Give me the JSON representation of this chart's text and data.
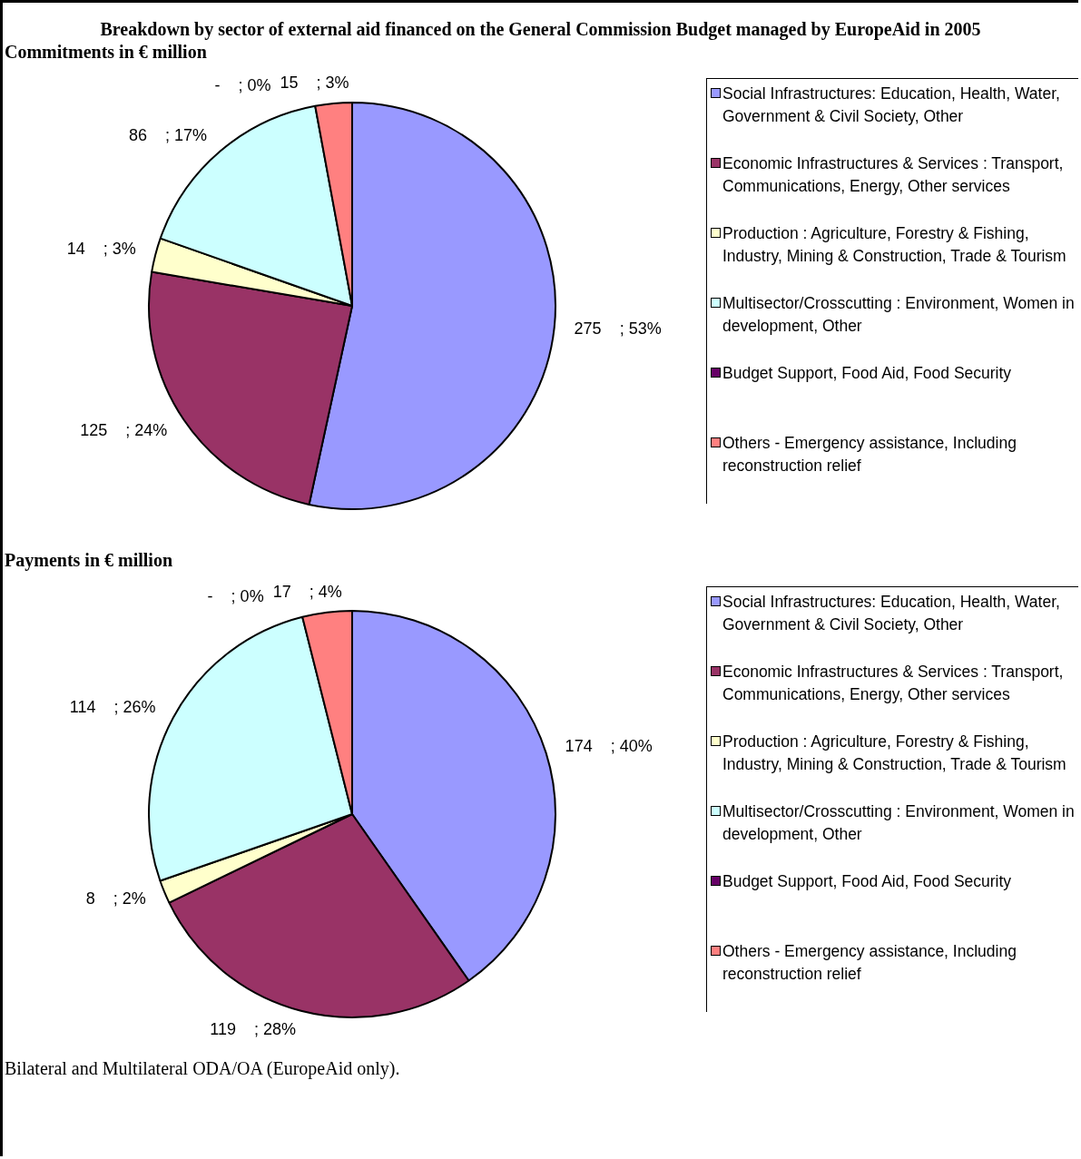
{
  "chart_data": [
    {
      "type": "pie",
      "title": "Breakdown by sector of external aid financed on the General Commission Budget managed by EuropeAid in 2005",
      "subtitle": "Commitments in € million",
      "categories": [
        "Social Infrastructures: Education, Health, Water, Government & Civil Society, Other",
        "Economic Infrastructures & Services : Transport, Communications, Energy, Other services",
        "Production : Agriculture, Forestry & Fishing, Industry, Mining & Construction, Trade & Tourism",
        "Multisector/Crosscutting : Environment, Women in development, Other",
        "Budget Support, Food Aid, Food Security",
        "Others - Emergency assistance, Including reconstruction relief"
      ],
      "values": [
        275,
        125,
        14,
        86,
        0,
        15
      ],
      "value_labels": [
        "275    ; 53%",
        "125    ; 24%",
        "14    ; 3%",
        "86    ; 17%",
        "-    ; 0%",
        "15    ; 3%"
      ],
      "colors": [
        "#9999ff",
        "#993366",
        "#ffffcc",
        "#ccffff",
        "#660066",
        "#ff8080"
      ],
      "legend": "right"
    },
    {
      "type": "pie",
      "title": "Payments in € million",
      "categories": [
        "Social Infrastructures: Education, Health, Water, Government & Civil Society, Other",
        "Economic Infrastructures & Services : Transport, Communications, Energy, Other services",
        "Production : Agriculture, Forestry & Fishing, Industry, Mining & Construction, Trade & Tourism",
        "Multisector/Crosscutting : Environment, Women in development, Other",
        "Budget Support, Food Aid, Food Security",
        "Others - Emergency assistance, Including reconstruction relief"
      ],
      "values": [
        174,
        119,
        8,
        114,
        0,
        17
      ],
      "value_labels": [
        "174    ; 40%",
        "119    ; 28%",
        "8    ; 2%",
        "114    ; 26%",
        "-    ; 0%",
        "17    ; 4%"
      ],
      "colors": [
        "#9999ff",
        "#993366",
        "#ffffcc",
        "#ccffff",
        "#660066",
        "#ff8080"
      ],
      "legend": "right",
      "annotations": [
        "Bilateral and Multilateral ODA/OA (EuropeAid only)."
      ]
    }
  ]
}
